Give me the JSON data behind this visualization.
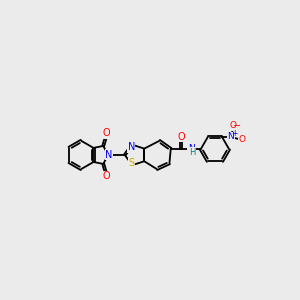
{
  "background_color": "#ebebeb",
  "bond_color": "#000000",
  "atom_colors": {
    "N": "#0000ff",
    "O": "#ff0000",
    "S": "#ccaa00",
    "NH": "#008080",
    "C": "#000000"
  },
  "line_width": 1.3,
  "figsize": [
    3.0,
    3.0
  ],
  "dpi": 100
}
